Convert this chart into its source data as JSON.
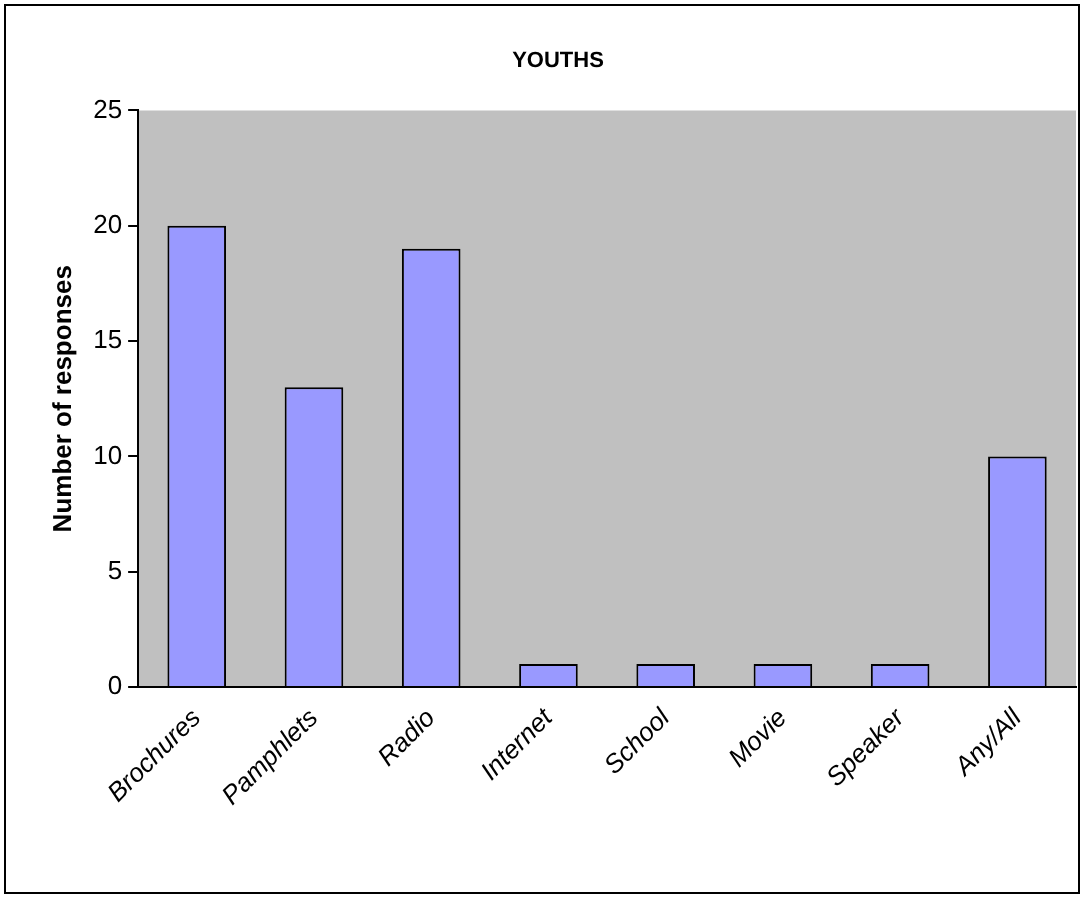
{
  "chart_data": {
    "type": "bar",
    "title": "YOUTHS",
    "ylabel": "Number of responses",
    "categories": [
      "Brochures",
      "Pamphlets",
      "Radio",
      "Internet",
      "School",
      "Movie",
      "Speaker",
      "Any/All"
    ],
    "values": [
      20,
      13,
      19,
      1,
      1,
      1,
      1,
      10
    ],
    "color": "#9999ff",
    "ylim": [
      0,
      25
    ],
    "yticks": [
      0,
      5,
      10,
      15,
      20,
      25
    ],
    "grid": false,
    "legend": false
  }
}
